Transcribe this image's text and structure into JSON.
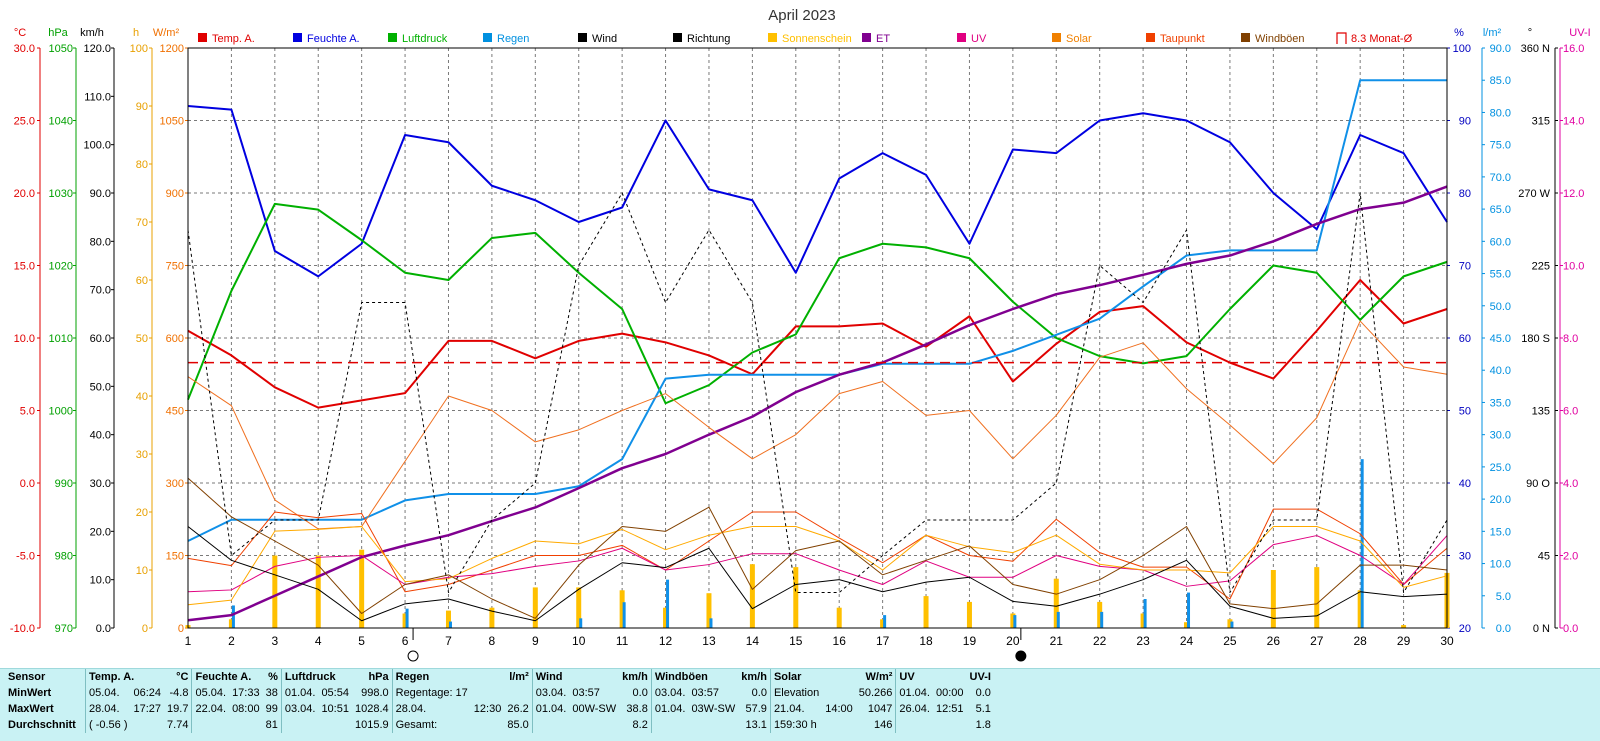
{
  "chart_data": {
    "type": "line",
    "title": "April 2023",
    "x": [
      1,
      2,
      3,
      4,
      5,
      6,
      7,
      8,
      9,
      10,
      11,
      12,
      13,
      14,
      15,
      16,
      17,
      18,
      19,
      20,
      21,
      22,
      23,
      24,
      25,
      26,
      27,
      28,
      29,
      30
    ],
    "xlim": [
      1,
      30
    ],
    "axes": {
      "temp": {
        "unit": "°C",
        "ylim": [
          -10,
          30
        ],
        "ticks": [
          "30.0",
          "25.0",
          "20.0",
          "15.0",
          "10.0",
          "5.0",
          "0.0",
          "-5.0",
          "-10.0"
        ],
        "color": "#e00000"
      },
      "pressure": {
        "unit": "hPa",
        "ylim": [
          970,
          1050
        ],
        "ticks": [
          "1050",
          "1040",
          "1030",
          "1020",
          "1010",
          "1000",
          "990",
          "980",
          "970"
        ],
        "color": "#00a000"
      },
      "wind": {
        "unit": "km/h",
        "ylim": [
          0,
          120
        ],
        "ticks": [
          "120.0",
          "110.0",
          "100.0",
          "90.0",
          "80.0",
          "70.0",
          "60.0",
          "50.0",
          "40.0",
          "30.0",
          "20.0",
          "10.0",
          "0.0"
        ],
        "color": "#000000"
      },
      "sunshine": {
        "unit": "h",
        "ylim": [
          0,
          100
        ],
        "ticks": [
          "100",
          "90",
          "80",
          "70",
          "60",
          "50",
          "40",
          "30",
          "20",
          "10",
          "0"
        ],
        "color": "#e8a000"
      },
      "solar": {
        "unit": "W/m²",
        "ylim": [
          0,
          1200
        ],
        "ticks": [
          "1200",
          "1050",
          "900",
          "750",
          "600",
          "450",
          "300",
          "150",
          "0"
        ],
        "color": "#f07000"
      },
      "humidity": {
        "unit": "%",
        "ylim": [
          20,
          100
        ],
        "ticks": [
          "100",
          "90",
          "80",
          "70",
          "60",
          "50",
          "40",
          "30",
          "20"
        ],
        "color": "#0000c0"
      },
      "rain": {
        "unit": "l/m²",
        "ylim": [
          0,
          90
        ],
        "ticks": [
          "90.0",
          "85.0",
          "80.0",
          "75.0",
          "70.0",
          "65.0",
          "60.0",
          "55.0",
          "50.0",
          "45.0",
          "40.0",
          "35.0",
          "30.0",
          "25.0",
          "20.0",
          "15.0",
          "10.0",
          "5.0",
          "0.0"
        ],
        "color": "#0090e0"
      },
      "direction": {
        "unit": "°",
        "ylim": [
          0,
          360
        ],
        "ticks": [
          "360 N",
          "315",
          "270 W",
          "225",
          "180 S",
          "135",
          "90 O",
          "45",
          "0 N"
        ],
        "color": "#000000"
      },
      "uv": {
        "unit": "UV-I",
        "ylim": [
          0,
          16
        ],
        "ticks": [
          "16.0",
          "14.0",
          "12.0",
          "10.0",
          "8.0",
          "6.0",
          "4.0",
          "2.0",
          "0.0"
        ],
        "color": "#e000a0"
      }
    },
    "legend": [
      {
        "name": "Temp. A.",
        "color": "#e00000",
        "shape": "square"
      },
      {
        "name": "Feuchte A.",
        "color": "#0000e0",
        "shape": "square"
      },
      {
        "name": "Luftdruck",
        "color": "#00b000",
        "shape": "square"
      },
      {
        "name": "Regen",
        "color": "#0090e0",
        "shape": "square"
      },
      {
        "name": "Wind",
        "color": "#000000",
        "shape": "square"
      },
      {
        "name": "Richtung",
        "color": "#000000",
        "shape": "square"
      },
      {
        "name": "Sonnenschein",
        "color": "#ffc000",
        "shape": "square"
      },
      {
        "name": "ET",
        "color": "#800090",
        "shape": "square"
      },
      {
        "name": "UV",
        "color": "#e00080",
        "shape": "square"
      },
      {
        "name": "Solar",
        "color": "#f08000",
        "shape": "square"
      },
      {
        "name": "Taupunkt",
        "color": "#f04000",
        "shape": "square"
      },
      {
        "name": "Windböen",
        "color": "#804000",
        "shape": "square"
      },
      {
        "name": "8.3 Monat-Ø",
        "color": "#e00000",
        "shape": "bracket"
      }
    ],
    "series": [
      {
        "name": "Temp. A.",
        "axis": "temp",
        "color": "#e00000",
        "width": 2,
        "values": [
          10.5,
          8.8,
          6.6,
          5.2,
          5.7,
          6.2,
          9.8,
          9.8,
          8.6,
          9.8,
          10.3,
          9.7,
          8.8,
          7.5,
          10.8,
          10.8,
          11.0,
          9.4,
          11.5,
          7.0,
          9.6,
          11.8,
          12.2,
          9.7,
          8.3,
          7.2,
          10.5,
          14.0,
          11.0,
          12.0
        ]
      },
      {
        "name": "Feuchte A.",
        "axis": "humidity",
        "color": "#0000e0",
        "width": 2,
        "values": [
          92,
          91.5,
          72,
          68.5,
          73,
          88,
          87,
          81,
          79,
          76,
          78,
          90,
          80.5,
          79,
          69,
          82,
          85.5,
          82.5,
          73,
          86,
          85.5,
          90,
          91,
          90,
          87,
          80,
          75,
          88,
          85.5,
          76
        ]
      },
      {
        "name": "Luftdruck",
        "axis": "pressure",
        "color": "#00b000",
        "width": 2,
        "values": [
          1001.5,
          1016.5,
          1028.5,
          1027.7,
          1023.5,
          1019.0,
          1018.0,
          1023.8,
          1024.5,
          1019.0,
          1014.0,
          1001.0,
          1003.5,
          1008.0,
          1010.5,
          1021.0,
          1023.0,
          1022.5,
          1021.0,
          1015.0,
          1010.0,
          1007.5,
          1006.5,
          1007.5,
          1014.0,
          1020.0,
          1019.0,
          1012.5,
          1018.5,
          1020.5
        ]
      },
      {
        "name": "Regen",
        "axis": "rain",
        "color": "#1090e8",
        "width": 2,
        "values": [
          13.5,
          16.8,
          16.8,
          16.8,
          16.8,
          19.8,
          20.8,
          20.8,
          20.8,
          22.0,
          26.2,
          38.7,
          39.3,
          39.3,
          39.3,
          39.3,
          41.0,
          41.0,
          41.0,
          43.0,
          45.5,
          48.0,
          53.0,
          57.8,
          58.6,
          58.6,
          58.6,
          85.0,
          85.0,
          85.0
        ]
      },
      {
        "name": "ET",
        "axis": "rain",
        "color": "#800090",
        "width": 2.5,
        "values": [
          1.2,
          2.0,
          5.0,
          8.0,
          11.0,
          12.8,
          14.4,
          16.6,
          18.7,
          21.7,
          24.8,
          27.0,
          30.0,
          32.8,
          36.6,
          39.3,
          41.2,
          44.0,
          47.0,
          49.5,
          51.8,
          53.2,
          54.8,
          56.5,
          57.8,
          60.0,
          62.7,
          65.0,
          66.0,
          68.5
        ]
      },
      {
        "name": "Solar",
        "axis": "solar",
        "color": "#f07020",
        "width": 1,
        "values": [
          520,
          460,
          265,
          205,
          210,
          345,
          480,
          450,
          385,
          410,
          450,
          485,
          415,
          350,
          400,
          485,
          510,
          440,
          450,
          350,
          440,
          560,
          590,
          495,
          420,
          340,
          435,
          635,
          540,
          525
        ]
      },
      {
        "name": "Taupunkt",
        "axis": "temp",
        "color": "#f04000",
        "width": 1,
        "values": [
          -5.2,
          -5.7,
          -2.0,
          -2.4,
          -2.1,
          -7.5,
          -7.0,
          -6.0,
          -5.0,
          -5.0,
          -4.3,
          -6.0,
          -4.0,
          -2.0,
          -2.0,
          -3.8,
          -5.5,
          -3.6,
          -5.0,
          -5.4,
          -2.5,
          -4.8,
          -5.8,
          -5.8,
          -8.0,
          -1.8,
          -1.8,
          -3.5,
          -7.0,
          -4.5
        ]
      },
      {
        "name": "UV",
        "axis": "uv",
        "color": "#e00080",
        "width": 1,
        "values": [
          1.0,
          1.05,
          1.7,
          1.95,
          2.0,
          1.2,
          1.4,
          1.5,
          1.7,
          1.85,
          2.2,
          1.6,
          1.75,
          2.05,
          2.05,
          1.6,
          1.2,
          1.85,
          1.4,
          1.4,
          2.0,
          1.7,
          1.6,
          1.15,
          1.3,
          2.3,
          2.55,
          2.0,
          1.2,
          2.55
        ]
      },
      {
        "name": "Sonnenschein",
        "axis": "sunshine",
        "color": "#ffaa00",
        "width": 1,
        "values": [
          4,
          4.8,
          16.7,
          17.0,
          17.5,
          8.0,
          8.5,
          12,
          15,
          14.5,
          17,
          13.5,
          16,
          17.5,
          17.5,
          15,
          10,
          16,
          14,
          13,
          16,
          11,
          10,
          10,
          9.5,
          17.5,
          17.5,
          15,
          7,
          9
        ]
      },
      {
        "name": "Windböen",
        "axis": "wind",
        "color": "#804000",
        "width": 1,
        "values": [
          31,
          23,
          18,
          13,
          3,
          9,
          11,
          6,
          2,
          13,
          21,
          20,
          25,
          8,
          16,
          18,
          11,
          14,
          17,
          9,
          7,
          10,
          15,
          21,
          5,
          4,
          5,
          13,
          13,
          12
        ]
      },
      {
        "name": "Wind",
        "axis": "wind",
        "color": "#000000",
        "width": 1,
        "values": [
          21,
          14,
          11,
          8,
          1.5,
          5,
          6,
          3.5,
          1.5,
          8,
          13.5,
          12.5,
          16.5,
          4,
          9,
          10,
          7.5,
          9.5,
          10.5,
          5.5,
          4.5,
          7,
          10,
          14,
          4.5,
          2,
          2.5,
          7.5,
          6.5,
          7
        ]
      },
      {
        "name": "Richtung",
        "axis": "direction",
        "color": "#000000",
        "width": 1,
        "dashed": true,
        "values": [
          247,
          45,
          67,
          67,
          202,
          202,
          22,
          67,
          90,
          225,
          270,
          202,
          247,
          202,
          22,
          22,
          45,
          67,
          67,
          67,
          90,
          225,
          202,
          247,
          22,
          67,
          67,
          270,
          22,
          67
        ]
      },
      {
        "name": "8.3 Monat-Ø",
        "axis": "temp",
        "color": "#e00000",
        "width": 1.5,
        "dashed": true,
        "constant": 8.3
      }
    ],
    "bars": [
      {
        "name": "Sonnenschein",
        "axis": "sunshine",
        "color": "#ffc000",
        "width": 5,
        "values": [
          0.5,
          1.5,
          12.5,
          12.5,
          13.5,
          2.5,
          3.0,
          3.5,
          7.0,
          7.0,
          6.5,
          3.5,
          6.0,
          11.0,
          10.5,
          3.5,
          1.5,
          5.5,
          4.5,
          2.5,
          8.5,
          4.5,
          2.5,
          1.0,
          1.5,
          10.0,
          10.5,
          6.5,
          0.5,
          9.5
        ]
      },
      {
        "name": "Regen",
        "axis": "rain",
        "color": "#1090e8",
        "width": 3,
        "values": [
          0,
          3.5,
          0,
          0,
          0,
          3.0,
          1.0,
          0,
          0,
          1.5,
          4.0,
          7.5,
          1.5,
          0,
          0,
          0,
          2.0,
          0,
          0,
          2.0,
          2.5,
          2.5,
          4.5,
          5.5,
          1.0,
          0,
          0,
          26.2,
          0,
          0
        ]
      }
    ],
    "moon_markers": [
      {
        "day": 6,
        "phase": "full"
      },
      {
        "day": 20,
        "phase": "new"
      }
    ]
  },
  "summary": {
    "row_labels": [
      "Sensor",
      "MinWert",
      "MaxWert",
      "Durchschnitt"
    ],
    "groups": [
      {
        "title": "Temp. A.",
        "unit": "°C",
        "min": [
          "05.04.",
          "06:24",
          "-4.8"
        ],
        "max": [
          "28.04.",
          "17:27",
          "19.7"
        ],
        "avg": [
          "( -0.56 )",
          "",
          "7.74"
        ]
      },
      {
        "title": "Feuchte A.",
        "unit": "%",
        "min": [
          "05.04.",
          "17:33",
          "38"
        ],
        "max": [
          "22.04.",
          "08:00",
          "99"
        ],
        "avg": [
          "",
          "",
          "81"
        ]
      },
      {
        "title": "Luftdruck",
        "unit": "hPa",
        "min": [
          "01.04.",
          "05:54",
          "998.0"
        ],
        "max": [
          "03.04.",
          "10:51",
          "1028.4"
        ],
        "avg": [
          "",
          "",
          "1015.9"
        ]
      },
      {
        "title": "Regen",
        "unit": "l/m²",
        "min": [
          "Regentage: 17",
          "",
          ""
        ],
        "max": [
          "28.04.",
          "12:30",
          "26.2"
        ],
        "avg": [
          "Gesamt:",
          "",
          "85.0"
        ]
      },
      {
        "title": "Wind",
        "unit": "km/h",
        "min": [
          "03.04.",
          "03:57",
          "0.0"
        ],
        "max": [
          "01.04.",
          "00W-SW",
          "38.8"
        ],
        "avg": [
          "",
          "",
          "8.2"
        ]
      },
      {
        "title": "Windböen",
        "unit": "km/h",
        "min": [
          "03.04.",
          "03:57",
          "0.0"
        ],
        "max": [
          "01.04.",
          "03W-SW",
          "57.9"
        ],
        "avg": [
          "",
          "",
          "13.1"
        ]
      },
      {
        "title": "Solar",
        "unit": "W/m²",
        "min": [
          "Elevation",
          "",
          "50.266"
        ],
        "max": [
          "21.04.",
          "14:00",
          "1047"
        ],
        "avg": [
          "159:30 h",
          "",
          "146"
        ]
      },
      {
        "title": "UV",
        "unit": "UV-I",
        "min": [
          "01.04.",
          "00:00",
          "0.0"
        ],
        "max": [
          "26.04.",
          "12:51",
          "5.1"
        ],
        "avg": [
          "",
          "",
          "1.8"
        ]
      }
    ]
  }
}
